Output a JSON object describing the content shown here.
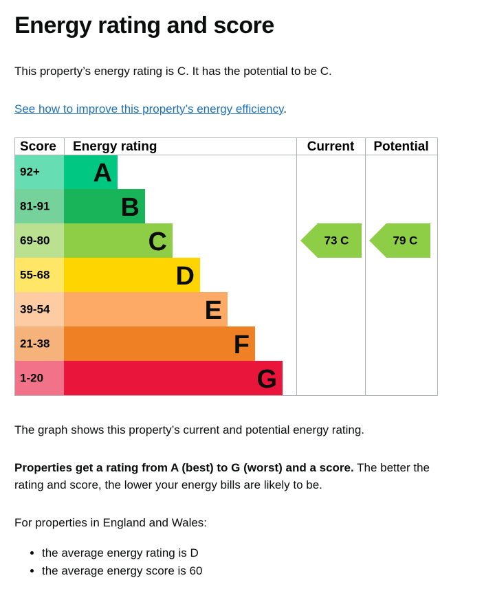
{
  "heading": "Energy rating and score",
  "intro": "This property’s energy rating is C. It has the potential to be C.",
  "link": {
    "text": "See how to improve this property’s energy efficiency",
    "after": "."
  },
  "table": {
    "headers": [
      "Score",
      "Energy rating",
      "Current",
      "Potential"
    ],
    "bands": [
      {
        "score": "92+",
        "letter": "A",
        "color": "#00c781"
      },
      {
        "score": "81-91",
        "letter": "B",
        "color": "#19b459"
      },
      {
        "score": "69-80",
        "letter": "C",
        "color": "#8dce46"
      },
      {
        "score": "55-68",
        "letter": "D",
        "color": "#ffd500"
      },
      {
        "score": "39-54",
        "letter": "E",
        "color": "#fcaa65"
      },
      {
        "score": "21-38",
        "letter": "F",
        "color": "#ef8023"
      },
      {
        "score": "1-20",
        "letter": "G",
        "color": "#e9153b"
      }
    ],
    "current": {
      "label": "73 C",
      "band": "C"
    },
    "potential": {
      "label": "79 C",
      "band": "C"
    }
  },
  "paragraphs": [
    {
      "text": "The graph shows this property’s current and potential energy rating."
    },
    {
      "bold": "Properties get a rating from A (best) to G (worst) and a score.",
      "rest": " The better the rating and score, the lower your energy bills are likely to be."
    },
    {
      "text": "For properties in England and Wales:"
    }
  ],
  "bullets": [
    "the average energy rating is D",
    "the average energy score is 60"
  ]
}
